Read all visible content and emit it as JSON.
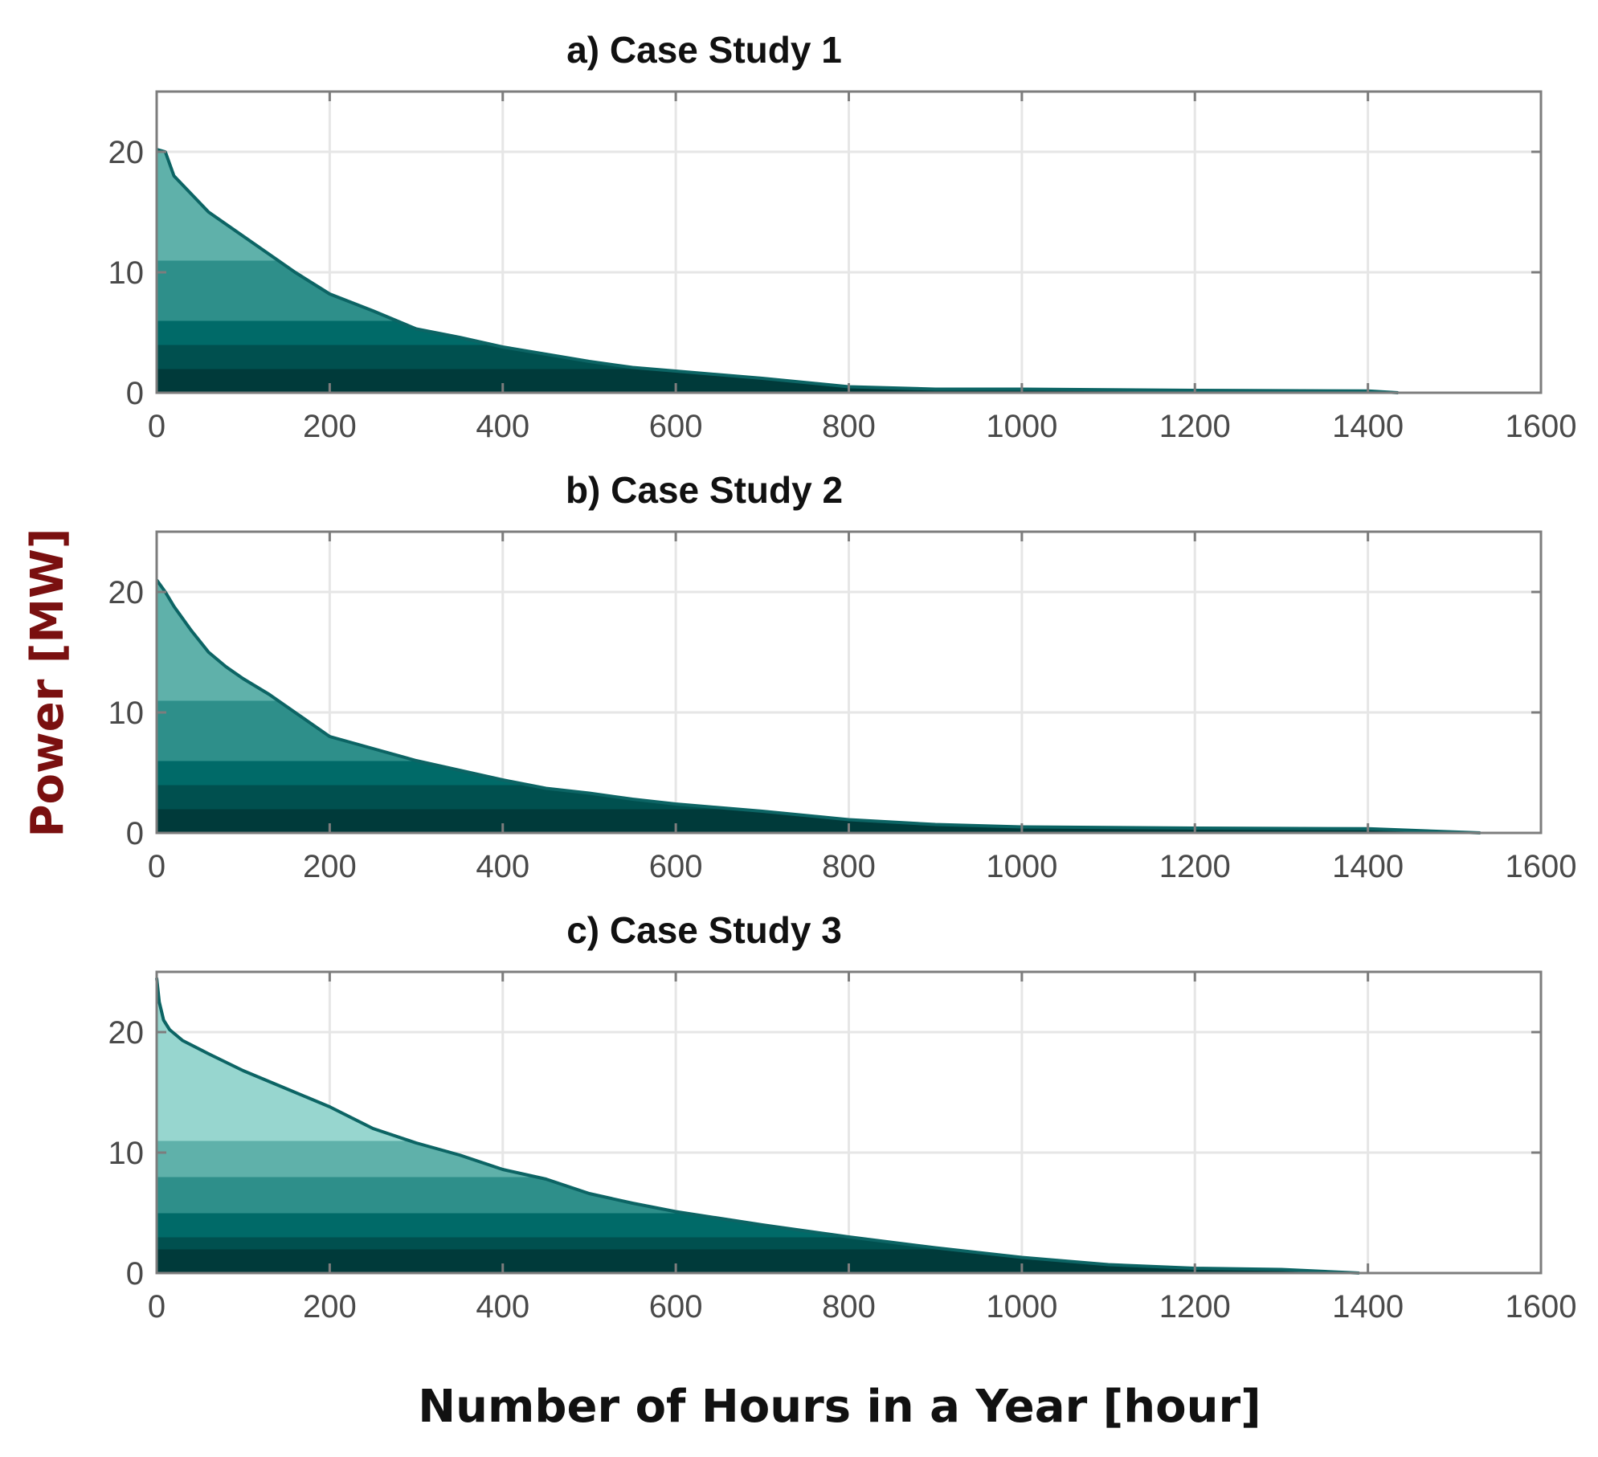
{
  "figure": {
    "ylabel": "Power [MW]",
    "xlabel": "Number of Hours in a Year [hour]"
  },
  "colors": {
    "line": "#0c6464",
    "bands": [
      "#003a3a",
      "#00504f",
      "#006a68",
      "#2e8f8a",
      "#5fb1aa",
      "#97d6cf"
    ],
    "grid": "#e6e6e6",
    "axes": "#7d7d7d",
    "ylabel": "#7a1010"
  },
  "chart_data": [
    {
      "type": "area",
      "title": "a)  Case Study 1",
      "xlim": [
        0,
        1600
      ],
      "ylim": [
        0,
        25
      ],
      "xticks": [
        "0",
        "200",
        "400",
        "600",
        "800",
        "1000",
        "1200",
        "1400",
        "1600"
      ],
      "yticks": [
        "0",
        "10",
        "20"
      ],
      "grid": true,
      "bands_mw": [
        2,
        4,
        6,
        11
      ],
      "x": [
        0,
        10,
        20,
        40,
        60,
        80,
        100,
        130,
        160,
        200,
        250,
        300,
        350,
        400,
        450,
        500,
        550,
        600,
        700,
        800,
        900,
        1000,
        1200,
        1400,
        1435
      ],
      "y": [
        20.2,
        20,
        18,
        16.5,
        15,
        14,
        13,
        11.5,
        10,
        8.2,
        6.8,
        5.3,
        4.6,
        3.8,
        3.2,
        2.6,
        2.1,
        1.8,
        1.2,
        0.5,
        0.3,
        0.3,
        0.2,
        0.15,
        0
      ]
    },
    {
      "type": "area",
      "title": "b)  Case Study 2",
      "xlim": [
        0,
        1600
      ],
      "ylim": [
        0,
        25
      ],
      "xticks": [
        "0",
        "200",
        "400",
        "600",
        "800",
        "1000",
        "1200",
        "1400",
        "1600"
      ],
      "yticks": [
        "0",
        "10",
        "20"
      ],
      "grid": true,
      "bands_mw": [
        2,
        4,
        6,
        11
      ],
      "x": [
        0,
        10,
        20,
        40,
        60,
        80,
        100,
        130,
        160,
        200,
        250,
        300,
        350,
        400,
        450,
        500,
        550,
        600,
        700,
        800,
        900,
        1000,
        1200,
        1400,
        1530
      ],
      "y": [
        21,
        20,
        18.8,
        16.8,
        15,
        13.8,
        12.8,
        11.5,
        10,
        8,
        7,
        6,
        5.2,
        4.4,
        3.7,
        3.3,
        2.8,
        2.4,
        1.8,
        1.1,
        0.7,
        0.5,
        0.4,
        0.35,
        0
      ]
    },
    {
      "type": "area",
      "title": "c)  Case Study 3",
      "xlim": [
        0,
        1600
      ],
      "ylim": [
        0,
        25
      ],
      "xticks": [
        "0",
        "200",
        "400",
        "600",
        "800",
        "1000",
        "1200",
        "1400",
        "1600"
      ],
      "yticks": [
        "0",
        "10",
        "20"
      ],
      "grid": true,
      "bands_mw": [
        2,
        3,
        5,
        8,
        11,
        15
      ],
      "x": [
        0,
        3,
        8,
        15,
        30,
        60,
        100,
        150,
        200,
        250,
        300,
        350,
        400,
        450,
        500,
        550,
        600,
        700,
        800,
        900,
        1000,
        1100,
        1200,
        1300,
        1390
      ],
      "y": [
        24.5,
        22.5,
        21,
        20.2,
        19.3,
        18.2,
        16.8,
        15.3,
        13.8,
        12,
        10.8,
        9.8,
        8.6,
        7.8,
        6.6,
        5.8,
        5.1,
        4,
        3,
        2.1,
        1.3,
        0.7,
        0.4,
        0.3,
        0
      ]
    }
  ]
}
